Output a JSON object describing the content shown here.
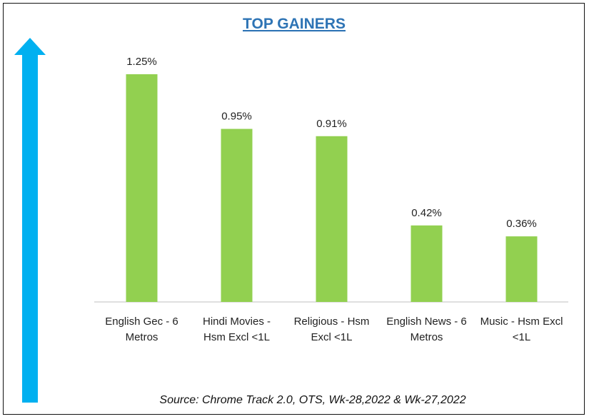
{
  "colors": {
    "bar": "#92d050",
    "arrow": "#00b0f0",
    "title": "#2e74b5",
    "axis": "#bfbfbf"
  },
  "chart_data": {
    "type": "bar",
    "title": "TOP GAINERS",
    "categories": [
      "English Gec - 6 Metros",
      "Hindi Movies - Hsm Excl <1L",
      "Religious - Hsm Excl <1L",
      "English News - 6 Metros",
      "Music - Hsm Excl <1L"
    ],
    "category_lines": [
      [
        "English Gec - 6",
        "Metros"
      ],
      [
        "Hindi Movies -",
        "Hsm Excl <1L"
      ],
      [
        "Religious - Hsm",
        "Excl <1L"
      ],
      [
        "English News - 6",
        "Metros"
      ],
      [
        "Music - Hsm Excl",
        "<1L"
      ]
    ],
    "values": [
      1.25,
      0.95,
      0.91,
      0.42,
      0.36
    ],
    "data_labels": [
      "1.25%",
      "0.95%",
      "0.91%",
      "0.42%",
      "0.36%"
    ],
    "unit": "%",
    "ylim": [
      0,
      1.25
    ],
    "grid": false,
    "legend": "none"
  },
  "source": "Source: Chrome Track 2.0, OTS, Wk-28,2022 & Wk-27,2022"
}
